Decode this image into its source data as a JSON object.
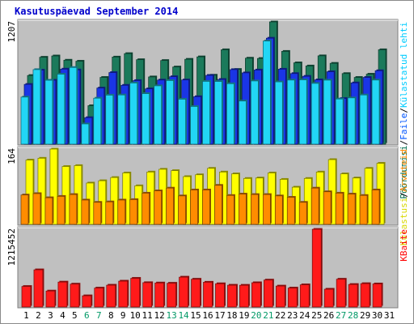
{
  "chart_data": {
    "type": "bar",
    "title": "Kasutuspäevad September 2014",
    "categories": [
      "1",
      "2",
      "3",
      "4",
      "5",
      "6",
      "7",
      "8",
      "9",
      "10",
      "11",
      "12",
      "13",
      "14",
      "15",
      "16",
      "17",
      "18",
      "19",
      "20",
      "21",
      "22",
      "23",
      "24",
      "25",
      "26",
      "27",
      "28",
      "29",
      "30",
      "31"
    ],
    "weekend_days": [
      "6",
      "7",
      "13",
      "14",
      "20",
      "21",
      "27",
      "28"
    ],
    "panels": [
      {
        "max_label": "1207",
        "ymax": 1207,
        "legend": [
          {
            "text": "Pöördumisi",
            "color": "#006e4c"
          },
          {
            "text": "/",
            "color": "#000000"
          },
          {
            "text": "Faile",
            "color": "#0055ff"
          },
          {
            "text": "/",
            "color": "#000000"
          },
          {
            "text": "Külastatud lehti",
            "color": "#00ccff"
          }
        ],
        "series": [
          {
            "name": "Pöördumisi",
            "color": "#1b7a5b",
            "values": [
              678,
              858,
              871,
              829,
              819,
              380,
              659,
              860,
              894,
              834,
              664,
              826,
              762,
              838,
              862,
              681,
              932,
              738,
              849,
              846,
              1207,
              916,
              803,
              772,
              872,
              798,
              697,
              659,
              691,
              932,
              null
            ]
          },
          {
            "name": "Faile",
            "color": "#1a35e6",
            "values": [
              590,
              731,
              631,
              741,
              733,
              262,
              554,
              707,
              581,
              628,
              546,
              633,
              666,
              634,
              469,
              679,
              639,
              736,
              704,
              732,
              1046,
              740,
              697,
              670,
              635,
              715,
              451,
              605,
              659,
              725,
              null
            ]
          },
          {
            "name": "Külastatud lehti",
            "color": "#22d6f5",
            "values": [
              465,
              736,
              631,
              691,
              757,
              200,
              454,
              484,
              486,
              604,
              499,
              576,
              628,
              444,
              372,
              620,
              619,
              597,
              426,
              624,
              1018,
              615,
              633,
              635,
              600,
              632,
              446,
              457,
              486,
              633,
              null
            ]
          }
        ]
      },
      {
        "max_label": "164",
        "ymax": 164,
        "legend": [
          {
            "text": "Külastusi",
            "color": "#d8d800"
          },
          {
            "text": "/",
            "color": "#000000"
          },
          {
            "text": "Arvuteid",
            "color": "#ff8800"
          }
        ],
        "series": [
          {
            "name": "Külastusi",
            "color": "#ffff00",
            "values": [
              140,
              144,
              164,
              126,
              128,
              90,
              95,
              102,
              112,
              84,
              114,
              120,
              117,
              104,
              108,
              122,
              114,
              110,
              100,
              101,
              112,
              98,
              81,
              100,
              114,
              141,
              110,
              101,
              122,
              133,
              null
            ]
          },
          {
            "name": "Arvuteid",
            "color": "#ff8c00",
            "values": [
              64,
              67,
              58,
              61,
              65,
              53,
              48,
              49,
              53,
              54,
              68,
              73,
              79,
              62,
              75,
              75,
              85,
              63,
              66,
              65,
              65,
              62,
              59,
              48,
              79,
              71,
              68,
              66,
              63,
              75,
              null
            ]
          }
        ]
      },
      {
        "max_label": "1215452",
        "ymax": 1215452,
        "legend": [
          {
            "text": "KBaite",
            "color": "#ff0000"
          }
        ],
        "series": [
          {
            "name": "KBaite",
            "color": "#ff1a1a",
            "values": [
              321442,
              581322,
              250112,
              389932,
              358252,
              175472,
              296492,
              341172,
              404302,
              448612,
              380792,
              376042,
              371762,
              467012,
              434732,
              387642,
              363762,
              340812,
              339902,
              379572,
              421292,
              327712,
              296442,
              347022,
              1215452,
              278492,
              434732,
              352372,
              365302,
              361152,
              null
            ]
          }
        ]
      }
    ]
  },
  "colors": {
    "panel_bg": "#c0c0c0",
    "frame": "#808080",
    "weekend_label": "#009966",
    "weekday_label": "#000000"
  }
}
